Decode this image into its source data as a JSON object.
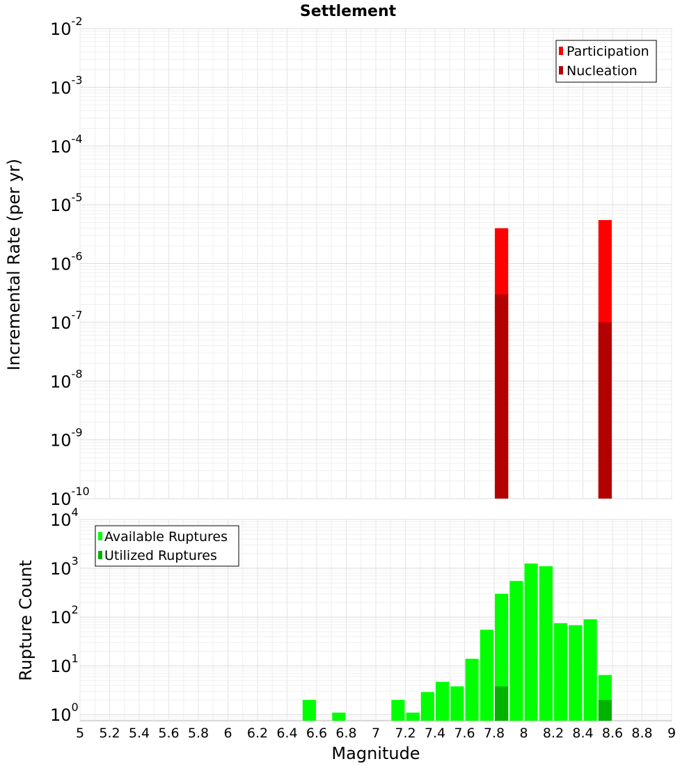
{
  "chart_data": [
    {
      "type": "bar",
      "title": "Settlement",
      "xlabel": "",
      "ylabel": "Incremental Rate (per yr)",
      "y_scale": "log",
      "ylim": [
        1e-10,
        0.01
      ],
      "xlim": [
        5,
        9
      ],
      "ytick_exponents": [
        -10,
        -9,
        -8,
        -7,
        -6,
        -5,
        -4,
        -3,
        -2
      ],
      "bar_width": 0.09,
      "grid": true,
      "legend_position": "top-right",
      "series": [
        {
          "name": "Participation",
          "color": "#ff0000",
          "x": [
            7.85,
            8.55
          ],
          "values": [
            4e-06,
            5.5e-06
          ]
        },
        {
          "name": "Nucleation",
          "color": "#b30000",
          "x": [
            7.85,
            8.55
          ],
          "values": [
            3e-07,
            1e-07
          ]
        }
      ]
    },
    {
      "type": "bar",
      "title": "",
      "xlabel": "Magnitude",
      "ylabel": "Rupture Count",
      "y_scale": "log",
      "ylim": [
        0.75,
        10000
      ],
      "xlim": [
        5,
        9
      ],
      "ytick_exponents": [
        0,
        1,
        2,
        3,
        4
      ],
      "xticks": [
        "5",
        "5.2",
        "5.4",
        "5.6",
        "5.8",
        "6",
        "6.2",
        "6.4",
        "6.6",
        "6.8",
        "7",
        "7.2",
        "7.4",
        "7.6",
        "7.8",
        "8",
        "8.2",
        "8.4",
        "8.6",
        "8.8",
        "9"
      ],
      "bar_width": 0.09,
      "grid": true,
      "legend_position": "top-left",
      "series": [
        {
          "name": "Available Ruptures",
          "color": "#00ff00",
          "x": [
            6.55,
            6.75,
            7.15,
            7.25,
            7.35,
            7.45,
            7.55,
            7.65,
            7.75,
            7.85,
            7.95,
            8.05,
            8.15,
            8.25,
            8.35,
            8.45,
            8.55
          ],
          "values": [
            2,
            1.1,
            2,
            1.1,
            2.9,
            4.7,
            3.8,
            14,
            55,
            300,
            550,
            1250,
            1100,
            75,
            68,
            90,
            6.5
          ]
        },
        {
          "name": "Utilized Ruptures",
          "color": "#00b300",
          "x": [
            7.85,
            8.55
          ],
          "values": [
            3.8,
            2
          ]
        }
      ]
    }
  ]
}
